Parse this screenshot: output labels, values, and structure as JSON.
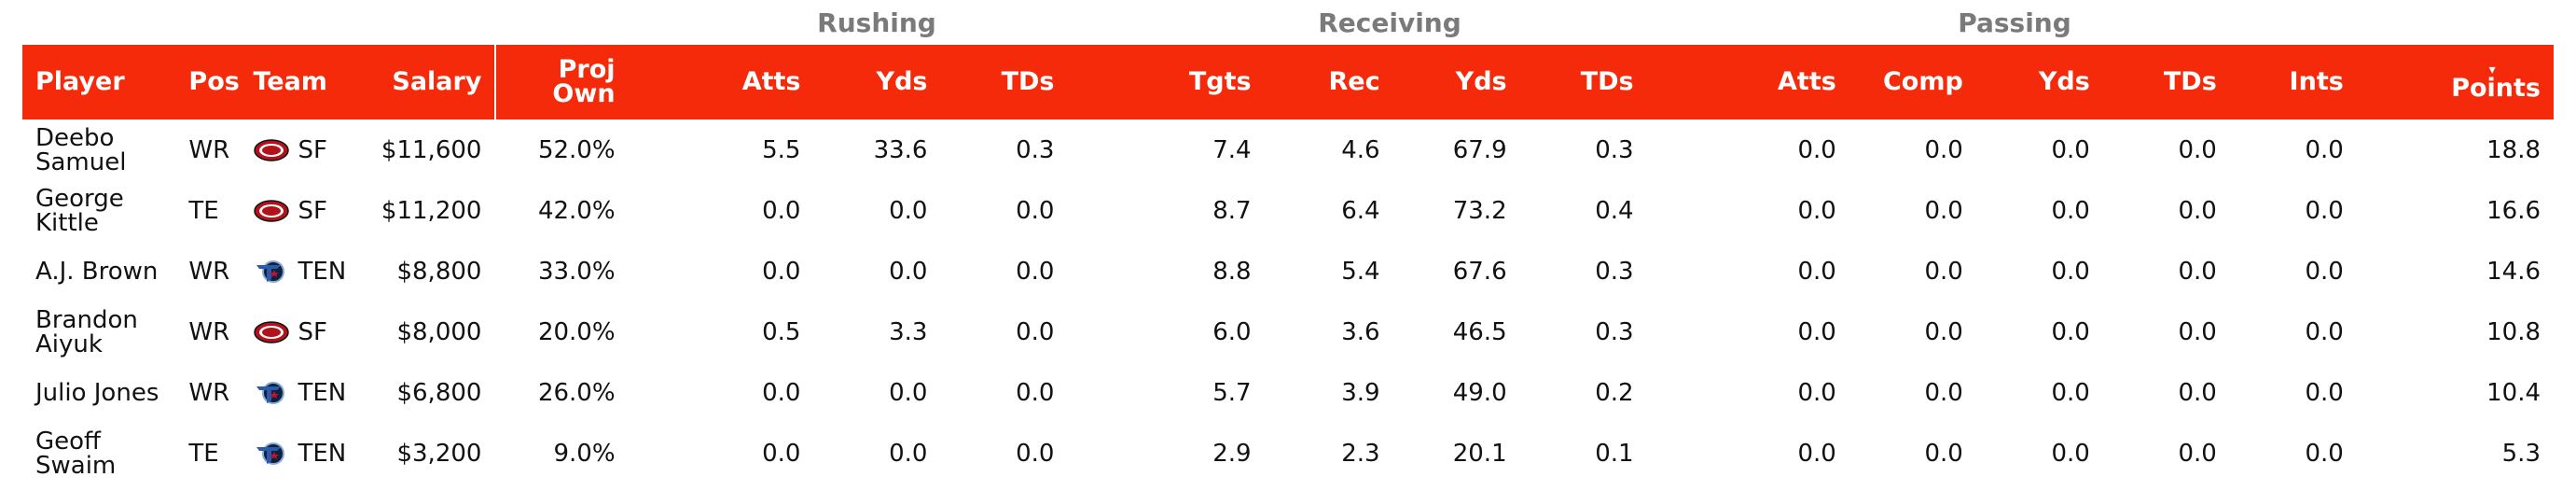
{
  "groups": {
    "rushing": "Rushing",
    "receiving": "Receiving",
    "passing": "Passing"
  },
  "headers": {
    "player": "Player",
    "pos": "Pos",
    "team": "Team",
    "salary": "Salary",
    "proj_own_line1": "Proj",
    "proj_own_line2": "Own",
    "rush_atts": "Atts",
    "rush_yds": "Yds",
    "rush_tds": "TDs",
    "tgts": "Tgts",
    "rec": "Rec",
    "rec_yds": "Yds",
    "rec_tds": "TDs",
    "pass_atts": "Atts",
    "comp": "Comp",
    "pass_yds": "Yds",
    "pass_tds": "TDs",
    "ints": "Ints",
    "points": "Points",
    "sort_icon": "▾"
  },
  "colors": {
    "header_bg": "#f52a0a",
    "group_text": "#7a7a7a",
    "sf_logo": "#b3121b",
    "ten_logo": "#2b5aa8"
  },
  "rows": [
    {
      "player_line1": "Deebo",
      "player_line2": "Samuel",
      "pos": "WR",
      "team": "SF",
      "team_icon": "49ers-logo-icon",
      "salary": "$11,600",
      "proj_own": "52.0%",
      "rush_atts": "5.5",
      "rush_yds": "33.6",
      "rush_tds": "0.3",
      "tgts": "7.4",
      "rec": "4.6",
      "rec_yds": "67.9",
      "rec_tds": "0.3",
      "pass_atts": "0.0",
      "comp": "0.0",
      "pass_yds": "0.0",
      "pass_tds": "0.0",
      "ints": "0.0",
      "points": "18.8"
    },
    {
      "player_line1": "George",
      "player_line2": "Kittle",
      "pos": "TE",
      "team": "SF",
      "team_icon": "49ers-logo-icon",
      "salary": "$11,200",
      "proj_own": "42.0%",
      "rush_atts": "0.0",
      "rush_yds": "0.0",
      "rush_tds": "0.0",
      "tgts": "8.7",
      "rec": "6.4",
      "rec_yds": "73.2",
      "rec_tds": "0.4",
      "pass_atts": "0.0",
      "comp": "0.0",
      "pass_yds": "0.0",
      "pass_tds": "0.0",
      "ints": "0.0",
      "points": "16.6"
    },
    {
      "player_line1": "A.J. Brown",
      "player_line2": "",
      "pos": "WR",
      "team": "TEN",
      "team_icon": "titans-logo-icon",
      "salary": "$8,800",
      "proj_own": "33.0%",
      "rush_atts": "0.0",
      "rush_yds": "0.0",
      "rush_tds": "0.0",
      "tgts": "8.8",
      "rec": "5.4",
      "rec_yds": "67.6",
      "rec_tds": "0.3",
      "pass_atts": "0.0",
      "comp": "0.0",
      "pass_yds": "0.0",
      "pass_tds": "0.0",
      "ints": "0.0",
      "points": "14.6"
    },
    {
      "player_line1": "Brandon",
      "player_line2": "Aiyuk",
      "pos": "WR",
      "team": "SF",
      "team_icon": "49ers-logo-icon",
      "salary": "$8,000",
      "proj_own": "20.0%",
      "rush_atts": "0.5",
      "rush_yds": "3.3",
      "rush_tds": "0.0",
      "tgts": "6.0",
      "rec": "3.6",
      "rec_yds": "46.5",
      "rec_tds": "0.3",
      "pass_atts": "0.0",
      "comp": "0.0",
      "pass_yds": "0.0",
      "pass_tds": "0.0",
      "ints": "0.0",
      "points": "10.8"
    },
    {
      "player_line1": "Julio Jones",
      "player_line2": "",
      "pos": "WR",
      "team": "TEN",
      "team_icon": "titans-logo-icon",
      "salary": "$6,800",
      "proj_own": "26.0%",
      "rush_atts": "0.0",
      "rush_yds": "0.0",
      "rush_tds": "0.0",
      "tgts": "5.7",
      "rec": "3.9",
      "rec_yds": "49.0",
      "rec_tds": "0.2",
      "pass_atts": "0.0",
      "comp": "0.0",
      "pass_yds": "0.0",
      "pass_tds": "0.0",
      "ints": "0.0",
      "points": "10.4"
    },
    {
      "player_line1": "Geoff",
      "player_line2": "Swaim",
      "pos": "TE",
      "team": "TEN",
      "team_icon": "titans-logo-icon",
      "salary": "$3,200",
      "proj_own": "9.0%",
      "rush_atts": "0.0",
      "rush_yds": "0.0",
      "rush_tds": "0.0",
      "tgts": "2.9",
      "rec": "2.3",
      "rec_yds": "20.1",
      "rec_tds": "0.1",
      "pass_atts": "0.0",
      "comp": "0.0",
      "pass_yds": "0.0",
      "pass_tds": "0.0",
      "ints": "0.0",
      "points": "5.3"
    }
  ]
}
